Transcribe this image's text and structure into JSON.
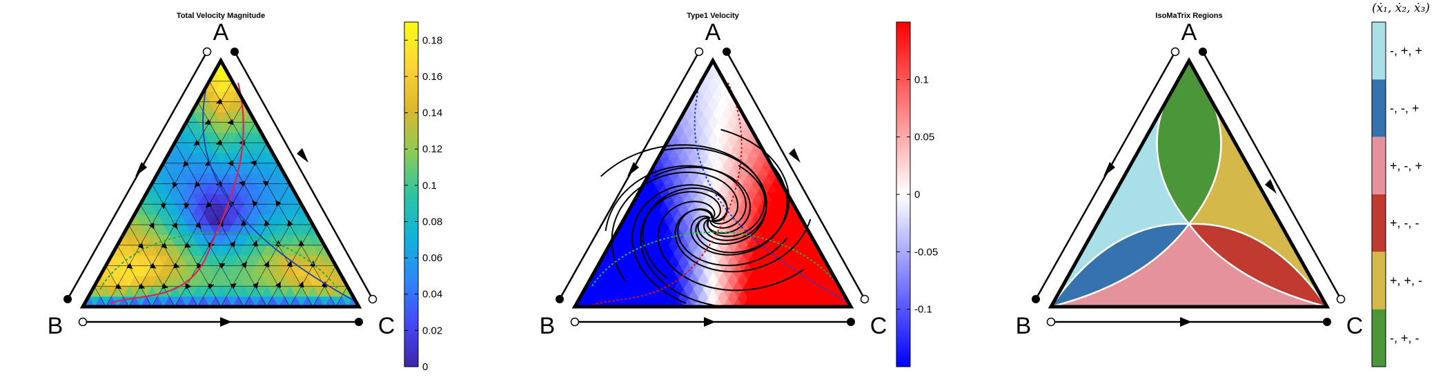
{
  "panels": [
    {
      "title": "Total Velocity Magnitude",
      "vertices": {
        "top": "A",
        "left": "B",
        "right": "C"
      },
      "colorbar": {
        "type": "continuous",
        "ticks": [
          "0.18",
          "0.16",
          "0.14",
          "0.12",
          "0.1",
          "0.08",
          "0.06",
          "0.04",
          "0.02",
          "0"
        ],
        "range": [
          0,
          0.19
        ],
        "colors": [
          "#3e26a8",
          "#4648f6",
          "#2e87f7",
          "#11b2d9",
          "#2ec4a2",
          "#8fca55",
          "#ddb82d",
          "#fdd636",
          "#f9fb15"
        ]
      }
    },
    {
      "title": "Type1 Velocity",
      "vertices": {
        "top": "A",
        "left": "B",
        "right": "C"
      },
      "colorbar": {
        "type": "continuous",
        "ticks": [
          "0.1",
          "0.05",
          "0",
          "-0.05",
          "-0.1"
        ],
        "range": [
          -0.15,
          0.15
        ],
        "colors": [
          "#0000ff",
          "#ffffff",
          "#ff0000"
        ]
      }
    },
    {
      "title": "IsoMaTrix Regions",
      "vertices": {
        "top": "A",
        "left": "B",
        "right": "C"
      },
      "colorbar": {
        "type": "categorical",
        "label": "(ẋ₁, ẋ₂, ẋ₃)",
        "categories": [
          {
            "label": "-, +, +",
            "color": "#a9e0e8"
          },
          {
            "label": "-, -, +",
            "color": "#3672ad"
          },
          {
            "label": "+, -, +",
            "color": "#e5929c"
          },
          {
            "label": "+, -, -",
            "color": "#c03a30"
          },
          {
            "label": "+, +, -",
            "color": "#d4b84a"
          },
          {
            "label": "-, +, -",
            "color": "#4a9638"
          }
        ]
      }
    }
  ],
  "chart_data": [
    {
      "type": "heatmap",
      "title": "Total Velocity Magnitude",
      "coordinates": "ternary",
      "vertices": [
        "A",
        "B",
        "C"
      ],
      "colorbar_range": [
        0,
        0.19
      ],
      "colorbar_ticks": [
        0,
        0.02,
        0.04,
        0.06,
        0.08,
        0.1,
        0.12,
        0.14,
        0.16,
        0.18
      ],
      "overlay": "direction arrows on triangular grid, nullcline curves"
    },
    {
      "type": "heatmap",
      "title": "Type1 Velocity",
      "coordinates": "ternary",
      "vertices": [
        "A",
        "B",
        "C"
      ],
      "colorbar_range": [
        -0.15,
        0.15
      ],
      "colorbar_ticks": [
        -0.1,
        -0.05,
        0,
        0.05,
        0.1
      ],
      "overlay": "trajectories spiraling to interior fixed point, nullcline curves"
    },
    {
      "type": "heatmap",
      "title": "IsoMaTrix Regions",
      "coordinates": "ternary",
      "vertices": [
        "A",
        "B",
        "C"
      ],
      "regions": [
        "-, +, +",
        "-, -, +",
        "+, -, +",
        "+, -, -",
        "+, +, -",
        "-, +, -"
      ]
    }
  ]
}
